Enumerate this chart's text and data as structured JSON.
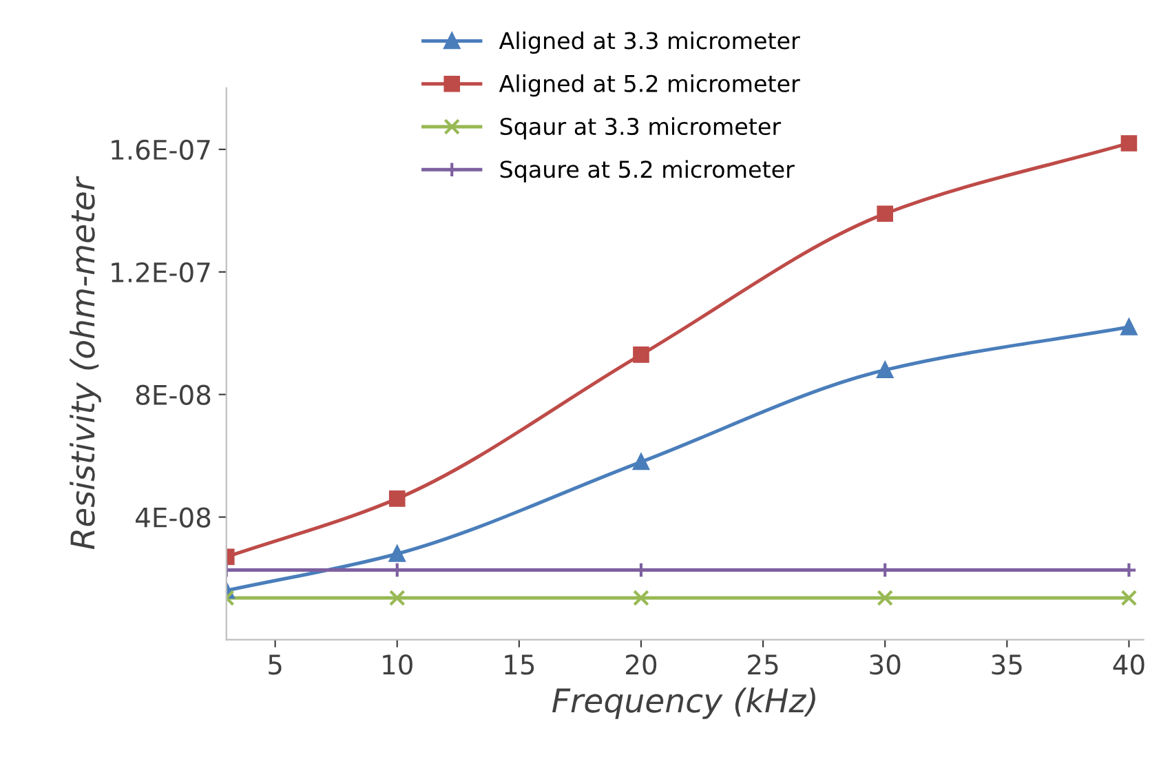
{
  "chart_data": {
    "type": "line",
    "xlabel": "Frequency (kHz)",
    "ylabel": "Resistivity (ohm-meter",
    "x": [
      3,
      10,
      20,
      30,
      40
    ],
    "xlim": [
      3,
      40.6
    ],
    "xticks": [
      5,
      10,
      15,
      20,
      25,
      30,
      35,
      40
    ],
    "ylim": [
      0,
      1.8e-07
    ],
    "yticks": [
      {
        "value": 4e-08,
        "label": "4E-08"
      },
      {
        "value": 8e-08,
        "label": "8E-08"
      },
      {
        "value": 1.2e-07,
        "label": "1.2E-07"
      },
      {
        "value": 1.6e-07,
        "label": "1.6E-07"
      }
    ],
    "grid": false,
    "legend": "top",
    "line_style": "solid",
    "series": [
      {
        "name": "Aligned at 3.3 micrometer",
        "color": "#4a7ebb",
        "marker": "triangle",
        "values": [
          1.6e-08,
          2.8e-08,
          5.8e-08,
          8.8e-08,
          1.02e-07
        ]
      },
      {
        "name": "Aligned at 5.2 micrometer",
        "color": "#be4b48",
        "marker": "square",
        "values": [
          2.7e-08,
          4.6e-08,
          9.3e-08,
          1.39e-07,
          1.62e-07
        ]
      },
      {
        "name": "Sqaur at 3.3 micrometer",
        "color": "#98b954",
        "marker": "cross",
        "values": [
          1.36e-08,
          1.36e-08,
          1.36e-08,
          1.36e-08,
          1.36e-08
        ]
      },
      {
        "name": "Sqaure at 5.2 micrometer",
        "color": "#7d60a0",
        "marker": "plus",
        "values": [
          2.27e-08,
          2.27e-08,
          2.27e-08,
          2.27e-08,
          2.27e-08
        ]
      }
    ]
  }
}
